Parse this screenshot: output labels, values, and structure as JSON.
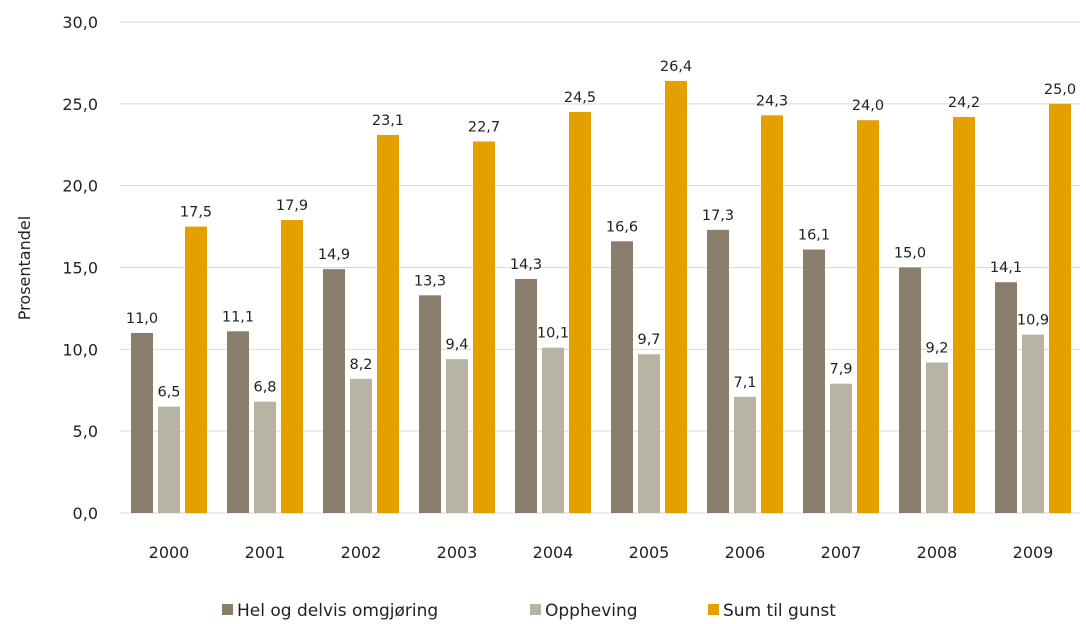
{
  "chart_data": {
    "type": "bar",
    "title": "",
    "xlabel": "",
    "ylabel": "Prosentandel",
    "ylim": [
      0,
      30
    ],
    "yticks": [
      "0,0",
      "5,0",
      "10,0",
      "15,0",
      "20,0",
      "25,0",
      "30,0"
    ],
    "grid": true,
    "legend_position": "bottom",
    "categories": [
      "2000",
      "2001",
      "2002",
      "2003",
      "2004",
      "2005",
      "2006",
      "2007",
      "2008",
      "2009"
    ],
    "series": [
      {
        "name": "Hel og delvis omgjøring",
        "color": "#8a7d6b",
        "values": [
          11.0,
          11.1,
          14.9,
          13.3,
          14.3,
          16.6,
          17.3,
          16.1,
          15.0,
          14.1
        ],
        "labels": [
          "11,0",
          "11,1",
          "14,9",
          "13,3",
          "14,3",
          "16,6",
          "17,3",
          "16,1",
          "15,0",
          "14,1"
        ]
      },
      {
        "name": "Oppheving",
        "color": "#b7b4a4",
        "values": [
          6.5,
          6.8,
          8.2,
          9.4,
          10.1,
          9.7,
          7.1,
          7.9,
          9.2,
          10.9
        ],
        "labels": [
          "6,5",
          "6,8",
          "8,2",
          "9,4",
          "10,1",
          "9,7",
          "7,1",
          "7,9",
          "9,2",
          "10,9"
        ]
      },
      {
        "name": "Sum til gunst",
        "color": "#e3a000",
        "values": [
          17.5,
          17.9,
          23.1,
          22.7,
          24.5,
          26.4,
          24.3,
          24.0,
          24.2,
          25.0
        ],
        "labels": [
          "17,5",
          "17,9",
          "23,1",
          "22,7",
          "24,5",
          "26,4",
          "24,3",
          "24,0",
          "24,2",
          "25,0"
        ]
      }
    ]
  }
}
